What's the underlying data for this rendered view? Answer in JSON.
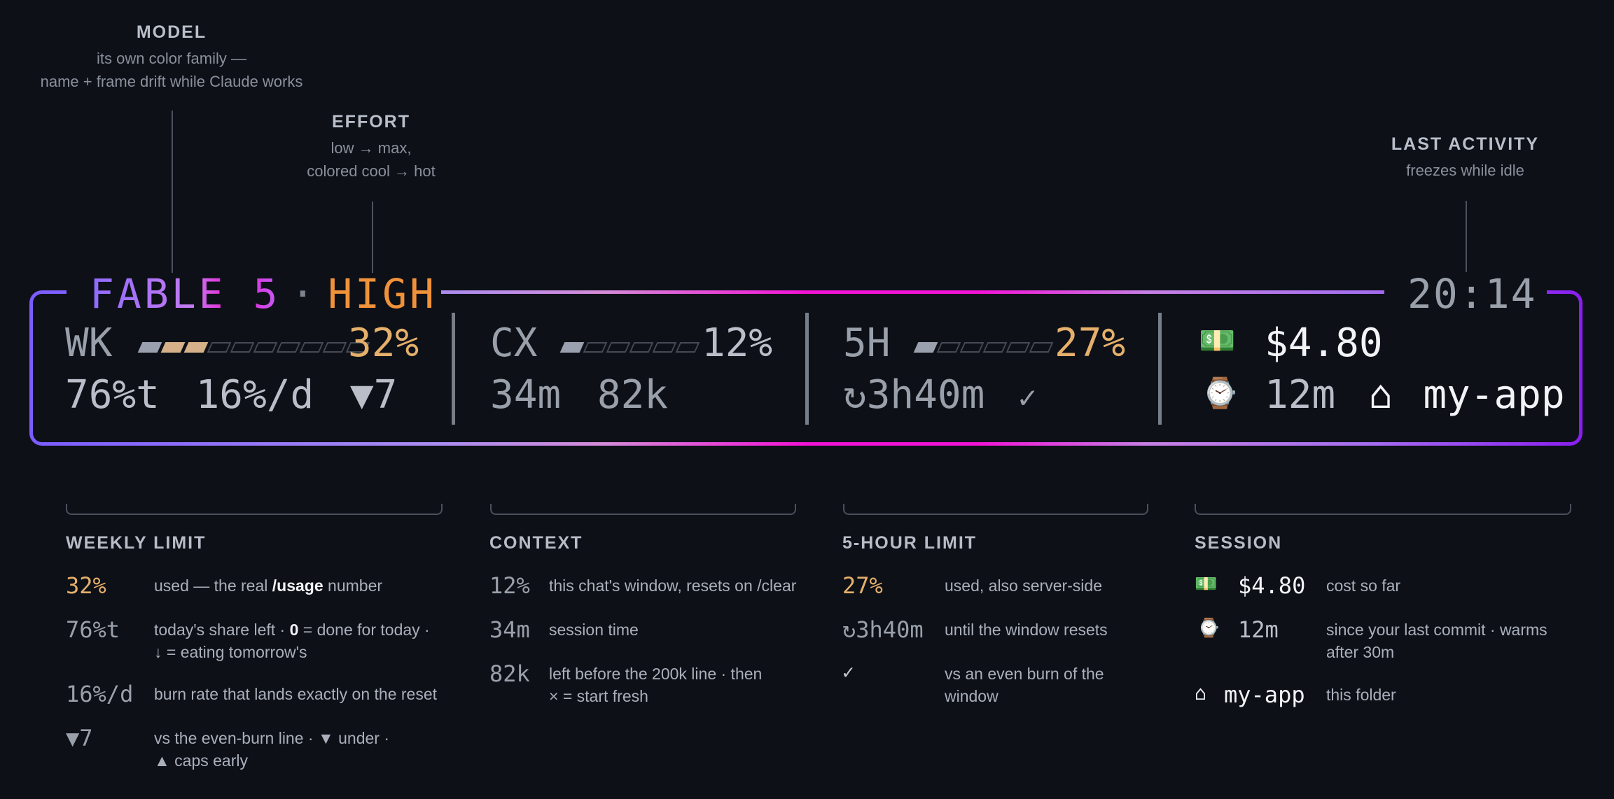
{
  "callouts": {
    "model": {
      "title": "MODEL",
      "line1": "its own color family —",
      "line2": "name + frame drift while Claude works"
    },
    "effort": {
      "title": "EFFORT",
      "line1": "low → max,",
      "line2": "colored cool → hot"
    },
    "last_activity": {
      "title": "LAST ACTIVITY",
      "line1": "freezes while idle"
    }
  },
  "statusbar": {
    "model": {
      "name": "FABLE 5",
      "dot": "·",
      "effort": "HIGH"
    },
    "time": "20:14",
    "weekly": {
      "label": "WK",
      "percent": "32%",
      "bars_filled": 3,
      "bars_total": 10,
      "left": "76%t",
      "rate": "16%/d",
      "delta": "▼7"
    },
    "context": {
      "label": "CX",
      "percent": "12%",
      "bars_filled": 1,
      "bars_total": 6,
      "session_time": "34m",
      "tokens_left": "82k"
    },
    "fivehour": {
      "label": "5H",
      "percent": "27%",
      "bars_filled": 1,
      "bars_total": 6,
      "reset": "↻3h40m",
      "check": "✓"
    },
    "session": {
      "cost_icon": "💵",
      "cost": "$4.80",
      "timer_icon": "⌚",
      "since_commit": "12m",
      "folder_icon": "⌂",
      "folder": "my-app"
    }
  },
  "sections": {
    "weekly": {
      "title": "WEEKLY LIMIT",
      "rows": [
        {
          "key": "32%",
          "desc_pre": "used — the real ",
          "desc_bold": "/usage",
          "desc_post": " number"
        },
        {
          "key": "76%t",
          "desc_pre": "today's share left · ",
          "desc_bold": "0",
          "desc_post": " = done for today ·",
          "desc_line2": "↓ = eating tomorrow's"
        },
        {
          "key": "16%/d",
          "desc": "burn rate that lands exactly on the reset"
        },
        {
          "key": "▼7",
          "desc": "vs the even-burn line · ▼ under ·",
          "desc_line2": "▲ caps early"
        }
      ]
    },
    "context": {
      "title": "CONTEXT",
      "rows": [
        {
          "key": "12%",
          "desc": "this chat's window, resets on /clear"
        },
        {
          "key": "34m",
          "desc": "session time"
        },
        {
          "key": "82k",
          "desc": "left before the 200k line · then",
          "desc_line2": "× = start fresh"
        }
      ]
    },
    "fivehour": {
      "title": "5-HOUR LIMIT",
      "rows": [
        {
          "key": "27%",
          "desc": "used, also server-side"
        },
        {
          "key": "↻3h40m",
          "desc": "until the window resets"
        },
        {
          "key": "✓",
          "desc": "vs an even burn of the",
          "desc_line2": "window"
        }
      ]
    },
    "session": {
      "title": "SESSION",
      "rows": [
        {
          "icon": "💵",
          "key": "$4.80",
          "desc": "cost so far"
        },
        {
          "icon": "⌚",
          "key": "12m",
          "desc": "since your last commit · warms",
          "desc_line2": "after 30m"
        },
        {
          "icon": "⌂",
          "key": "my-app",
          "desc": "this folder"
        }
      ]
    }
  },
  "colors": {
    "background": "#0d1017",
    "gold": "#e6b06b",
    "frame_start": "#7b5cff",
    "frame_mid": "#f212d6",
    "frame_end": "#8a1df0",
    "effort": "#f0923a"
  }
}
